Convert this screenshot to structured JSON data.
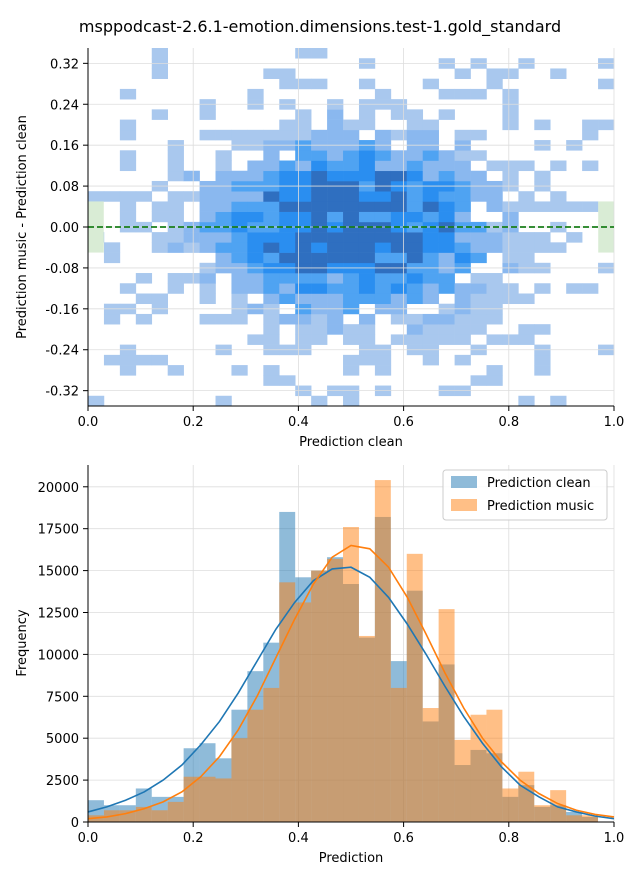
{
  "title": "msppodcast-2.6.1-emotion.dimensions.test-1.gold_standard",
  "chart_data": [
    {
      "type": "heatmap",
      "xlabel": "Prediction clean",
      "ylabel": "Prediction music - Prediction clean",
      "xlim": [
        0,
        1
      ],
      "ylim": [
        -0.35,
        0.35
      ],
      "xticks": [
        "0.0",
        "0.2",
        "0.4",
        "0.6",
        "0.8",
        "1.0"
      ],
      "yticks": [
        "0.32",
        "0.24",
        "0.16",
        "0.08",
        "0.00",
        "-0.08",
        "-0.16",
        "-0.24",
        "-0.32"
      ],
      "ytick_values": [
        0.32,
        0.24,
        0.16,
        0.08,
        0.0,
        -0.08,
        -0.16,
        -0.24,
        -0.32
      ],
      "reference_line": {
        "y": 0.0,
        "color": "#2ca02c",
        "style": "dashed"
      },
      "color_scale": [
        "#aec7e8",
        "#1f77b4"
      ],
      "grid": true
    },
    {
      "type": "bar",
      "xlabel": "Prediction",
      "ylabel": "Frequency",
      "xlim": [
        0,
        1
      ],
      "ylim": [
        0,
        21300
      ],
      "xticks": [
        "0.0",
        "0.2",
        "0.4",
        "0.6",
        "0.8",
        "1.0"
      ],
      "yticks": [
        "0",
        "2500",
        "5000",
        "7500",
        "10000",
        "12500",
        "15000",
        "17500",
        "20000"
      ],
      "ytick_values": [
        0,
        2500,
        5000,
        7500,
        10000,
        12500,
        15000,
        17500,
        20000
      ],
      "bin_width": 0.0303,
      "legend": {
        "position": "top-right"
      },
      "grid": true,
      "series": [
        {
          "name": "Prediction clean",
          "color": "#1f77b4",
          "values": [
            1300,
            1000,
            1000,
            2000,
            1500,
            1500,
            4400,
            4700,
            3800,
            6700,
            9000,
            10700,
            18500,
            14600,
            15000,
            15800,
            14200,
            11000,
            18200,
            9600,
            13800,
            6000,
            9400,
            3400,
            4300,
            4100,
            1500,
            2200,
            900,
            1000,
            600,
            300,
            0
          ],
          "kde": [
            600,
            900,
            1300,
            1800,
            2500,
            3400,
            4600,
            6000,
            7700,
            9600,
            11500,
            13100,
            14400,
            15100,
            15200,
            14600,
            13400,
            11800,
            10000,
            8100,
            6300,
            4700,
            3300,
            2200,
            1500,
            900,
            600,
            350,
            200
          ]
        },
        {
          "name": "Prediction music",
          "color": "#ff7f0e",
          "values": [
            400,
            700,
            700,
            900,
            700,
            1200,
            2700,
            2700,
            2600,
            5000,
            6700,
            8000,
            14300,
            13100,
            15000,
            15700,
            17600,
            11100,
            20400,
            8000,
            16000,
            6800,
            12700,
            4900,
            6400,
            6700,
            2000,
            3000,
            1000,
            1900,
            400,
            400,
            0
          ],
          "kde": [
            200,
            300,
            500,
            800,
            1200,
            1800,
            2700,
            3900,
            5500,
            7500,
            9800,
            12100,
            14200,
            15800,
            16500,
            16300,
            15200,
            13400,
            11200,
            8900,
            6800,
            5000,
            3600,
            2500,
            1700,
            1100,
            700,
            450,
            300
          ]
        }
      ]
    }
  ]
}
